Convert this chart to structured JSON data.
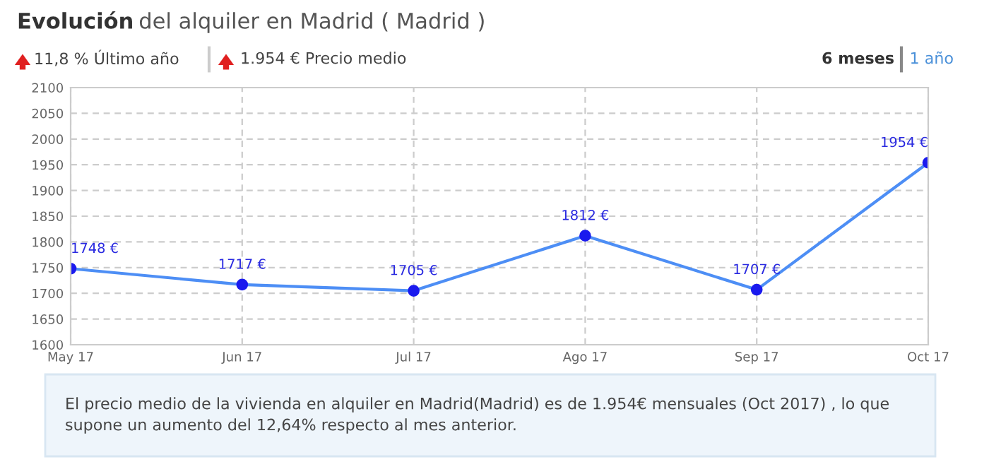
{
  "chart_data": {
    "type": "line",
    "title": "Evolución del alquiler en Madrid ( Madrid )",
    "categories": [
      "May 17",
      "Jun 17",
      "Jul 17",
      "Ago 17",
      "Sep 17",
      "Oct 17"
    ],
    "series": [
      {
        "color": "#4d8ef5",
        "values": [
          1748,
          1717,
          1705,
          1812,
          1707,
          1954
        ],
        "value_labels": [
          "1748 €",
          "1717 €",
          "1705 €",
          "1812 €",
          "1707 €",
          "1954 €"
        ]
      }
    ],
    "ylim": [
      1600,
      2100
    ],
    "yticks": [
      1600,
      1650,
      1700,
      1750,
      1800,
      1850,
      1900,
      1950,
      2000,
      2050,
      2100
    ],
    "grid": true,
    "marker": "circle",
    "line_style": "solid",
    "legend": false,
    "annotations": [
      "11,8 % Último año",
      "1.954 € Precio medio",
      "6 meses",
      "1 año",
      "El precio medio de la vivienda en alquiler en Madrid(Madrid) es de 1.954€ mensuales (Oct 2017) , lo que supone un aumento del 12,64% respecto al mes anterior."
    ]
  }
}
